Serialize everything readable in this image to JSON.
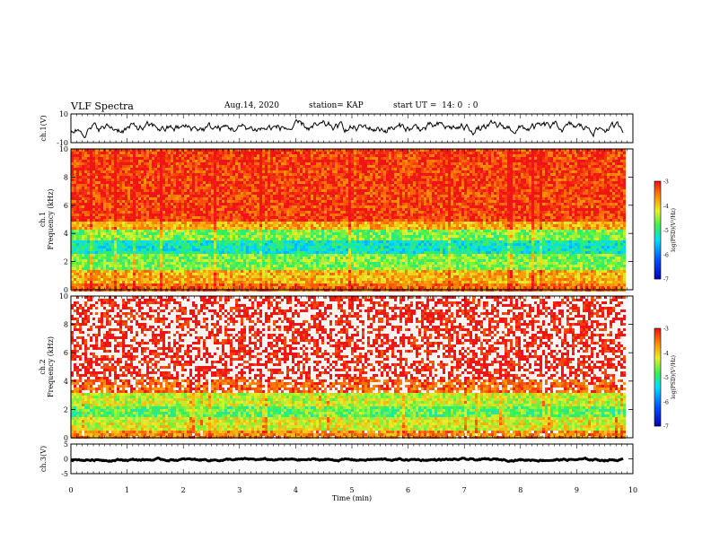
{
  "header": {
    "title": "VLF Spectra",
    "date": "Aug.14, 2020",
    "station": "station= KAP",
    "start_ut": "start UT =  14: 0  : 0"
  },
  "chart_data": [
    {
      "type": "line",
      "name": "ch1-waveform",
      "ylabel": "ch.1(V)",
      "ylim": [
        -10,
        10
      ],
      "yticks": [
        "10",
        "-10"
      ],
      "x_unit": "min",
      "xlim": [
        0,
        10
      ],
      "data_end_min": 9.83,
      "samples_note": "noisy voltage trace, mean approx 0 V, amplitude approx +/-8 V",
      "y_mean": 0,
      "y_amplitude": 8
    },
    {
      "type": "heatmap",
      "name": "ch1-spectrogram",
      "ylabel": "Frequency (kHz)",
      "channel_label": "ch.1",
      "ylim": [
        0,
        10
      ],
      "yticks": [
        "0",
        "2",
        "4",
        "6",
        "8",
        "10"
      ],
      "xlim": [
        0,
        10
      ],
      "data_end_min": 9.83,
      "colorbar": {
        "label": "log(PSD)(V²/Hz)",
        "range": [
          -7,
          -3
        ],
        "ticks": [
          "-3",
          "-4",
          "-5",
          "-6",
          "-7"
        ]
      },
      "bands_kHz": [
        {
          "from": 0,
          "to": 0.5,
          "level": -3.4
        },
        {
          "from": 0.5,
          "to": 1.5,
          "level": -3.8
        },
        {
          "from": 1.5,
          "to": 2.6,
          "level": -4.6
        },
        {
          "from": 2.6,
          "to": 3.6,
          "level": -5.2
        },
        {
          "from": 3.6,
          "to": 4.3,
          "level": -4.6
        },
        {
          "from": 4.3,
          "to": 5.0,
          "level": -3.8
        },
        {
          "from": 5.0,
          "to": 10,
          "level": -3.2
        }
      ]
    },
    {
      "type": "heatmap",
      "name": "ch2-spectrogram",
      "ylabel": "Frequency (kHz)",
      "channel_label": "ch.2",
      "ylim": [
        0,
        10
      ],
      "yticks": [
        "0",
        "2",
        "4",
        "6",
        "8",
        "10"
      ],
      "xlim": [
        0,
        10
      ],
      "data_end_min": 9.83,
      "colorbar": {
        "label": "log(PSD)(V²/Hz)",
        "range": [
          -7,
          -3
        ],
        "ticks": [
          "-3",
          "-4",
          "-5",
          "-6",
          "-7"
        ]
      },
      "bands_kHz": [
        {
          "from": 0,
          "to": 0.6,
          "level": -3.6
        },
        {
          "from": 0.6,
          "to": 1.5,
          "level": -4.2
        },
        {
          "from": 1.5,
          "to": 2.4,
          "level": -4.7
        },
        {
          "from": 2.4,
          "to": 3.2,
          "level": -4.3
        },
        {
          "from": 3.2,
          "to": 4.2,
          "level": -3.3
        },
        {
          "from": 4.2,
          "to": 10,
          "level": -2.9
        }
      ]
    },
    {
      "type": "line",
      "name": "ch3-waveform",
      "ylabel": "ch.3(V)",
      "ylim": [
        -5,
        5
      ],
      "yticks": [
        "5",
        "0",
        "-5"
      ],
      "xlim": [
        0,
        10
      ],
      "data_end_min": 9.83,
      "y_mean": -0.3,
      "y_amplitude": 0.8
    }
  ],
  "x_axis": {
    "label": "Time (min)",
    "ticks": [
      "0",
      "1",
      "2",
      "3",
      "4",
      "5",
      "6",
      "7",
      "8",
      "9",
      "10"
    ]
  },
  "colors": {
    "axis": "#000000",
    "trace": "#000000"
  }
}
